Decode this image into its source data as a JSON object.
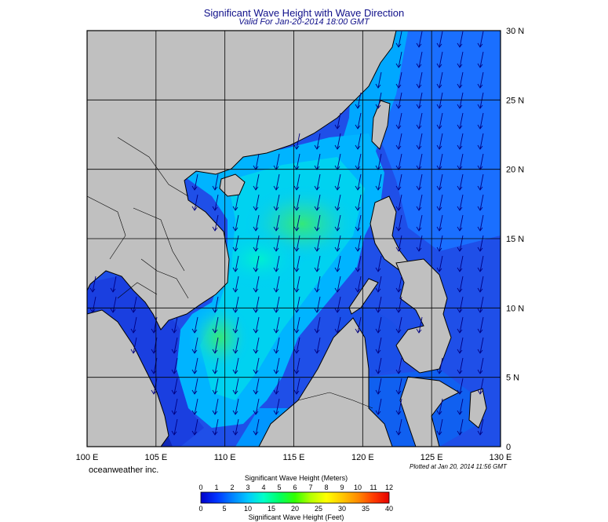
{
  "title": "Significant Wave Height with Wave Direction",
  "subtitle": "Valid For Jan-20-2014 18:00 GMT",
  "credit": "oceanweather inc.",
  "plotted": "Plotted at Jan 20, 2014 11:56 GMT",
  "lon_ticks": [
    "100 E",
    "105 E",
    "110 E",
    "115 E",
    "120 E",
    "125 E",
    "130 E"
  ],
  "lat_ticks": [
    "0",
    "5 N",
    "10 N",
    "15 N",
    "20 N",
    "25 N",
    "30 N"
  ],
  "colorbar": {
    "meters_title": "Significant Wave Height (Meters)",
    "feet_title": "Significant Wave Height (Feet)",
    "meters_ticks": [
      "0",
      "1",
      "2",
      "3",
      "4",
      "5",
      "6",
      "7",
      "8",
      "9",
      "10",
      "11",
      "12"
    ],
    "feet_ticks": [
      "0",
      "5",
      "10",
      "15",
      "20",
      "25",
      "30",
      "35",
      "40"
    ],
    "colors": [
      "#0000c8",
      "#0032ff",
      "#0082ff",
      "#00c8ff",
      "#00ffc8",
      "#00ff64",
      "#32ff00",
      "#b4ff00",
      "#ffff00",
      "#ffc800",
      "#ff8c00",
      "#ff3c00",
      "#e60000"
    ]
  },
  "colors": {
    "land": "#c0c0c0",
    "arrow": "#000080",
    "grid": "#000000"
  }
}
